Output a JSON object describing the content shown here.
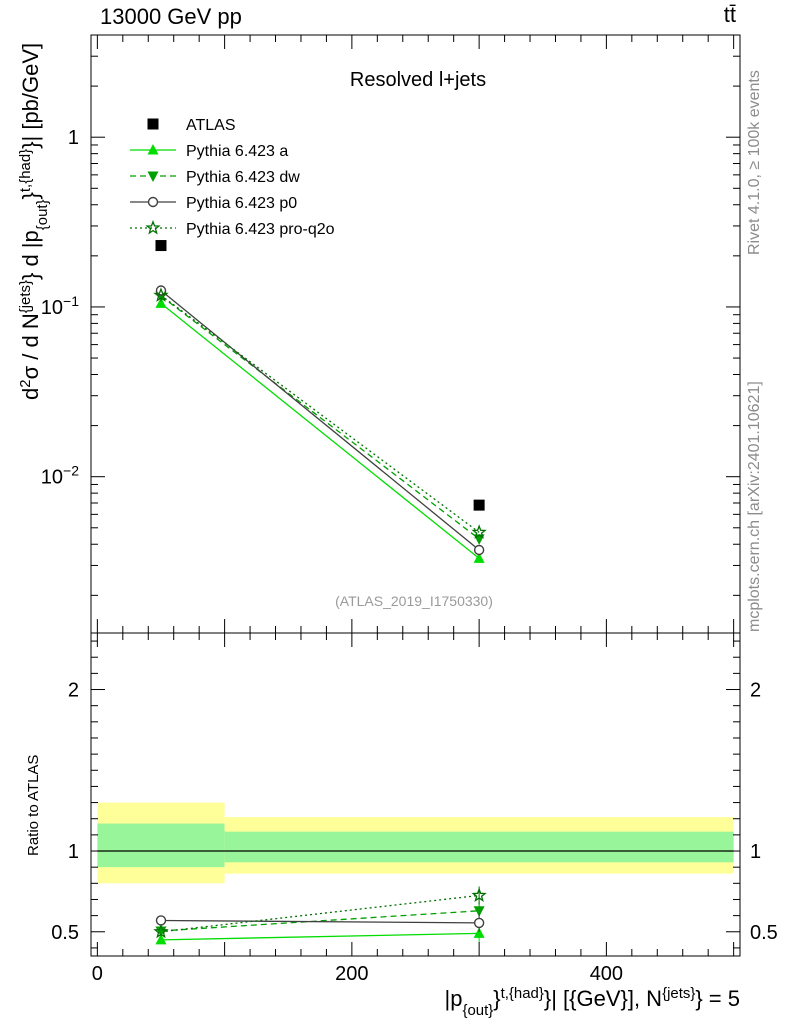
{
  "header": {
    "energy": "13000 GeV pp",
    "process": "tt̄"
  },
  "side_notes": {
    "rivet": "Rivet 4.1.0, ≥ 100k events",
    "source": "mcplots.cern.ch [arXiv:2401.10621]"
  },
  "chart_data": [
    {
      "type": "line",
      "panel": "main",
      "title": "Resolved l+jets",
      "watermark": "(ATLAS_2019_I1750330)",
      "ylabel": "d²σ / d N^{jets} d |p_{out}^{t,{had}}| [pb/GeV]",
      "yscale": "log",
      "ylim": [
        0.0012,
        4.0
      ],
      "xlim": [
        -5,
        505
      ],
      "y_ticks": [
        {
          "value": 1,
          "base": "1",
          "exp": ""
        },
        {
          "value": 0.1,
          "base": "10",
          "exp": "−1"
        },
        {
          "value": 0.01,
          "base": "10",
          "exp": "−2"
        }
      ],
      "x": [
        50,
        300
      ],
      "series": [
        {
          "name": "ATLAS",
          "color": "#000000",
          "marker": "square",
          "line": "none",
          "values": [
            0.23,
            0.0068
          ]
        },
        {
          "name": "Pythia 6.423 a",
          "color": "#00dd00",
          "marker": "triangle-up",
          "line": "solid",
          "values": [
            0.105,
            0.0033
          ]
        },
        {
          "name": "Pythia 6.423 dw",
          "color": "#00a000",
          "marker": "triangle-down",
          "line": "dashed",
          "values": [
            0.116,
            0.0043
          ]
        },
        {
          "name": "Pythia 6.423 p0",
          "color": "#404040",
          "marker": "open-circle",
          "line": "solid",
          "values": [
            0.125,
            0.0037
          ]
        },
        {
          "name": "Pythia 6.423 pro-q2o",
          "color": "#007000",
          "marker": "open-star",
          "line": "dotted",
          "values": [
            0.117,
            0.0047
          ]
        }
      ]
    },
    {
      "type": "line",
      "panel": "ratio",
      "ylabel": "Ratio to ATLAS",
      "xlabel": "|p_{out}^{t,{had}}| [{GeV}], N^{jets} = 5",
      "ylim": [
        0.35,
        2.35
      ],
      "xlim": [
        -5,
        505
      ],
      "y_ticks": [
        {
          "value": 0.5,
          "label": "0.5"
        },
        {
          "value": 1,
          "label": "1"
        },
        {
          "value": 2,
          "label": "2"
        }
      ],
      "x_ticks": [
        {
          "value": 0,
          "label": "0"
        },
        {
          "value": 200,
          "label": "200"
        },
        {
          "value": 400,
          "label": "400"
        }
      ],
      "bands": [
        {
          "x0": 0,
          "x1": 100,
          "inner": [
            0.9,
            1.17
          ],
          "outer": [
            0.8,
            1.3
          ]
        },
        {
          "x0": 100,
          "x1": 500,
          "inner": [
            0.93,
            1.12
          ],
          "outer": [
            0.86,
            1.21
          ]
        }
      ],
      "x": [
        50,
        300
      ],
      "series": [
        {
          "name": "Pythia 6.423 a",
          "values": [
            0.45,
            0.49
          ]
        },
        {
          "name": "Pythia 6.423 dw",
          "values": [
            0.505,
            0.63
          ]
        },
        {
          "name": "Pythia 6.423 p0",
          "values": [
            0.57,
            0.555
          ]
        },
        {
          "name": "Pythia 6.423 pro-q2o",
          "values": [
            0.5,
            0.725
          ]
        }
      ]
    }
  ]
}
